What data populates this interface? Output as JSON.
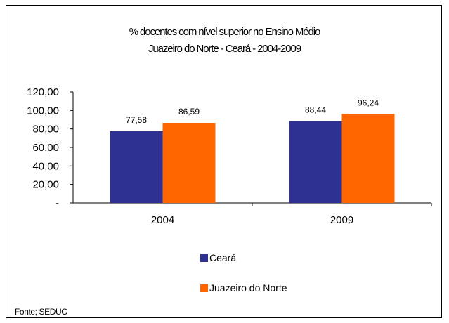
{
  "chart_data": {
    "type": "bar",
    "title_line1": "% docentes com nível superior no Ensino Médio",
    "title_line2": "Juazeiro do Norte - Ceará - 2004-2009",
    "categories": [
      "2004",
      "2009"
    ],
    "series": [
      {
        "name": "Ceará",
        "values": [
          77.58,
          88.44
        ],
        "labels": [
          "77,58",
          "88,44"
        ],
        "color": "#2e3192"
      },
      {
        "name": "Juazeiro do Norte",
        "values": [
          86.59,
          96.24
        ],
        "labels": [
          "86,59",
          "96,24"
        ],
        "color": "#ff6600"
      }
    ],
    "y_ticks": [
      0,
      20,
      40,
      60,
      80,
      100,
      120
    ],
    "y_tick_labels": [
      "-",
      "20,00",
      "40,00",
      "60,00",
      "80,00",
      "100,00",
      "120,00"
    ],
    "ylim": [
      0,
      120
    ],
    "grid": false,
    "legend_position": "bottom"
  },
  "source_note": "Fonte; SEDUC"
}
